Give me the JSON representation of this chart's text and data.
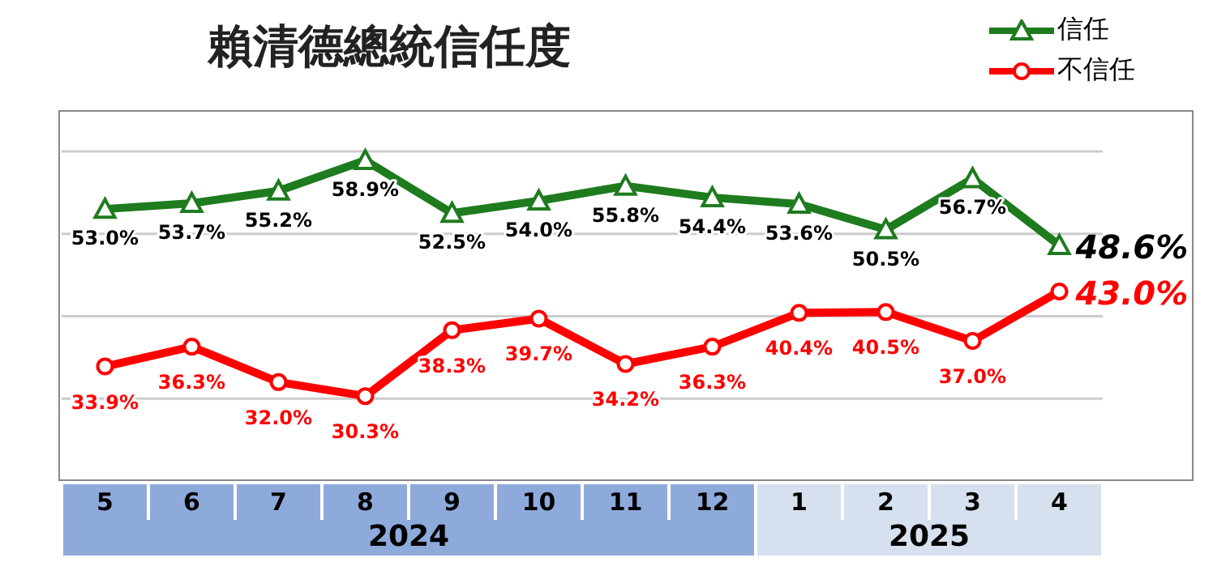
{
  "chart_data": {
    "type": "line",
    "title": "賴清德總統信任度",
    "categories": [
      "5",
      "6",
      "7",
      "8",
      "9",
      "10",
      "11",
      "12",
      "1",
      "2",
      "3",
      "4"
    ],
    "annotations": [
      "2024",
      "2025"
    ],
    "series": [
      {
        "name": "信任",
        "color": "#1e7b1e",
        "marker": "triangle",
        "values": [
          53.0,
          53.7,
          55.2,
          58.9,
          52.5,
          54.0,
          55.8,
          54.4,
          53.6,
          50.5,
          56.7,
          48.6
        ],
        "value_labels": [
          "53.0%",
          "53.7%",
          "55.2%",
          "58.9%",
          "52.5%",
          "54.0%",
          "55.8%",
          "54.4%",
          "53.6%",
          "50.5%",
          "56.7%",
          "48.6%"
        ]
      },
      {
        "name": "不信任",
        "color": "#ff0000",
        "marker": "circle",
        "values": [
          33.9,
          36.3,
          32.0,
          30.3,
          38.3,
          39.7,
          34.2,
          36.3,
          40.4,
          40.5,
          37.0,
          43.0
        ],
        "value_labels": [
          "33.9%",
          "36.3%",
          "32.0%",
          "30.3%",
          "38.3%",
          "39.7%",
          "34.2%",
          "36.3%",
          "40.4%",
          "40.5%",
          "37.0%",
          "43.0%"
        ]
      }
    ],
    "ylim": [
      20,
      65
    ],
    "yticks": [
      {
        "value": 30,
        "label": null
      },
      {
        "value": 40,
        "label": null
      },
      {
        "value": 50,
        "label": null
      },
      {
        "value": 60,
        "label": null
      }
    ],
    "tick_labels": "x",
    "grid": "y",
    "legend": "top right",
    "line_style": "solid"
  }
}
